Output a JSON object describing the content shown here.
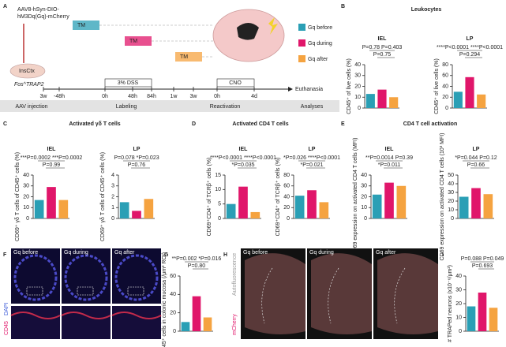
{
  "panel_a": {
    "letter": "A",
    "construct": [
      "AAV8-hSyn-DIO-",
      "hM3Dq(Gq)-mCherry"
    ],
    "tm": [
      "TM",
      "TM",
      "TM"
    ],
    "legend": [
      "Gq before",
      "Gq during",
      "Gq after"
    ],
    "legend_colors": [
      "#2a9fb5",
      "#e0166a",
      "#f5a340"
    ],
    "region": "InsCtx",
    "mouse": "Fos^TRAP2",
    "timeline": [
      "3w",
      "-48h",
      "0h",
      "48h",
      "84h",
      "1w",
      "3w",
      "0h",
      "4d"
    ],
    "dss": "3% DSS",
    "cno": "CNO",
    "end": "Euthanasia",
    "stages": [
      "AAV injection",
      "Labeling",
      "Reactivation",
      "Analyses"
    ]
  },
  "panel_f": {
    "letter": "F",
    "tiles": [
      "Gq before",
      "Gq during",
      "Gq after"
    ],
    "stain": [
      "CD45",
      "DAPI"
    ]
  },
  "panel_h": {
    "letter": "H",
    "tiles": [
      "Gq before",
      "Gq during",
      "Gq after"
    ],
    "stain": [
      "Autofluorescence",
      "mCherry"
    ]
  },
  "chart_data": [
    {
      "type": "bar",
      "panel": "B",
      "title": "Leukocytes",
      "subtitle": "IEL",
      "ylabel": "CD45⁺ of live cells (%)",
      "values": [
        13,
        17,
        10
      ],
      "colors": [
        "#2a9fb5",
        "#e0166a",
        "#f5a340"
      ],
      "ylim": [
        0,
        40
      ],
      "yticks": [
        0,
        10,
        20,
        30,
        40
      ],
      "annotations": [
        "P=0.78  P=0.403",
        "P=0.75"
      ]
    },
    {
      "type": "bar",
      "subtitle": "LP",
      "ylabel": "CD45⁺ of live cells (%)",
      "values": [
        30,
        57,
        25
      ],
      "colors": [
        "#2a9fb5",
        "#e0166a",
        "#f5a340"
      ],
      "ylim": [
        0,
        80
      ],
      "yticks": [
        0,
        20,
        40,
        60,
        80
      ],
      "annotations": [
        "****P<0.0001  ****P<0.0001",
        "P=0.294"
      ]
    },
    {
      "type": "bar",
      "panel": "C",
      "title": "Activated γδ T cells",
      "subtitle": "IEL",
      "ylabel": "CD69⁺ γδ T cells of CD45⁺ cells (%)",
      "values": [
        17,
        29,
        17
      ],
      "colors": [
        "#2a9fb5",
        "#e0166a",
        "#f5a340"
      ],
      "ylim": [
        0,
        40
      ],
      "yticks": [
        0,
        10,
        20,
        30,
        40
      ],
      "annotations": [
        "***P=0.0002  ***P=0.0002",
        "P=0.99"
      ]
    },
    {
      "type": "bar",
      "subtitle": "LP",
      "ylabel": "CD69⁺ γδ T cells of CD45⁺ cells (%)",
      "values": [
        1.5,
        0.7,
        1.8
      ],
      "colors": [
        "#2a9fb5",
        "#e0166a",
        "#f5a340"
      ],
      "ylim": [
        0,
        4
      ],
      "yticks": [
        0,
        1,
        2,
        3,
        4
      ],
      "annotations": [
        "P=0.078  *P=0.023",
        "P=0.76"
      ]
    },
    {
      "type": "bar",
      "panel": "D",
      "title": "Activated CD4 T cells",
      "subtitle": "IEL",
      "ylabel": "CD69⁺CD4⁺ of TCRβ⁺ cells (%)",
      "values": [
        5,
        11,
        2.2
      ],
      "colors": [
        "#2a9fb5",
        "#e0166a",
        "#f5a340"
      ],
      "ylim": [
        0,
        15
      ],
      "yticks": [
        0,
        5,
        10,
        15
      ],
      "annotations": [
        "****P<0.0001  ****P<0.0001",
        "*P=0.035"
      ]
    },
    {
      "type": "bar",
      "subtitle": "LP",
      "ylabel": "CD69⁺CD4⁺ of TCRβ⁺ cells (%)",
      "values": [
        42,
        52,
        30
      ],
      "colors": [
        "#2a9fb5",
        "#e0166a",
        "#f5a340"
      ],
      "ylim": [
        0,
        80
      ],
      "yticks": [
        0,
        20,
        40,
        60,
        80
      ],
      "annotations": [
        "*P=0.026  ****P<0.0001",
        "*P=0.021"
      ]
    },
    {
      "type": "bar",
      "panel": "E",
      "title": "CD4 T cell activation",
      "subtitle": "IEL",
      "ylabel": "CD69 expression on activated CD4 T cells (MFI)",
      "values": [
        22,
        33,
        30
      ],
      "colors": [
        "#2a9fb5",
        "#e0166a",
        "#f5a340"
      ],
      "ylim": [
        0,
        40
      ],
      "yticks": [
        0,
        10,
        20,
        30,
        40
      ],
      "annotations": [
        "**P=0.0014  P=0.39",
        "*P=0.011"
      ]
    },
    {
      "type": "bar",
      "subtitle": "LP",
      "ylabel": "CD69 expression on activated CD4 T cells (10³ MFI)",
      "values": [
        25,
        35,
        28
      ],
      "colors": [
        "#2a9fb5",
        "#e0166a",
        "#f5a340"
      ],
      "ylim": [
        0,
        50
      ],
      "yticks": [
        0,
        10,
        20,
        30,
        40,
        50
      ],
      "annotations": [
        "*P=0.044  P=0.12",
        "P=0.66"
      ]
    },
    {
      "type": "bar",
      "panel": "G",
      "ylabel": "CD45⁺ cells in colonic mucosa (/μm² ROI)",
      "values": [
        10,
        38,
        15
      ],
      "colors": [
        "#2a9fb5",
        "#e0166a",
        "#f5a340"
      ],
      "ylim": [
        0,
        60
      ],
      "yticks": [
        0,
        20,
        40,
        60
      ],
      "annotations": [
        "**P=0.002  *P=0.016",
        "P=0.80"
      ]
    },
    {
      "type": "bar",
      "panel": "I",
      "ylabel": "# TRAPed neurons (x10⁻⁶/μm²)",
      "values": [
        18,
        28,
        17
      ],
      "colors": [
        "#2a9fb5",
        "#e0166a",
        "#f5a340"
      ],
      "ylim": [
        0,
        40
      ],
      "yticks": [
        0,
        10,
        20,
        30,
        40
      ],
      "annotations": [
        "P=0.088  P=0.049",
        "P=0.693"
      ]
    }
  ]
}
